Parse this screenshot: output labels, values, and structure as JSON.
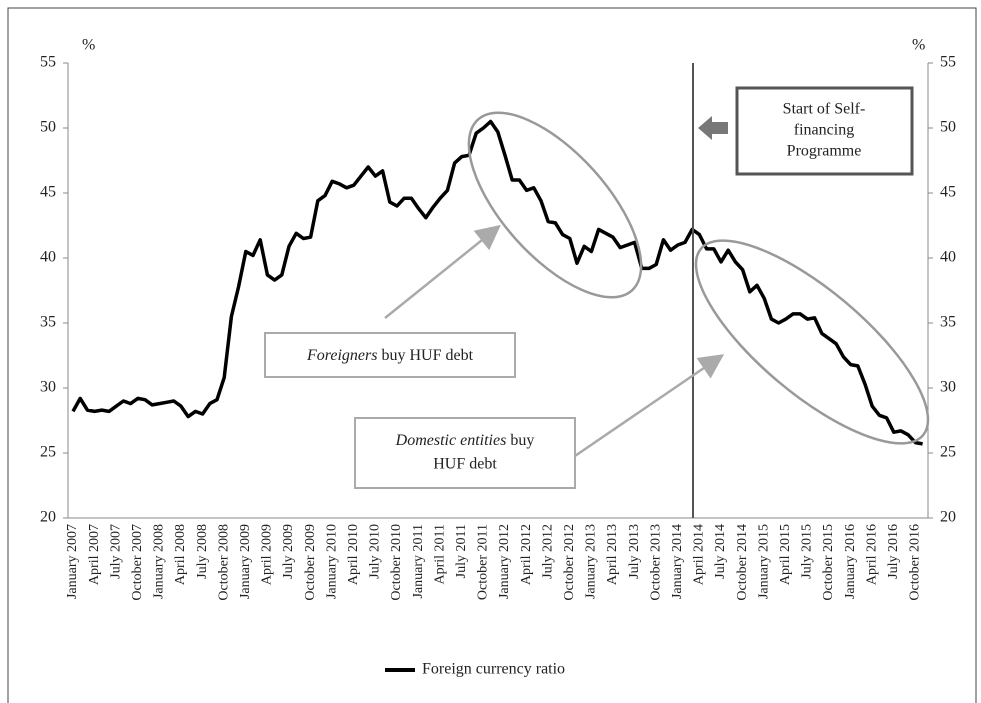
{
  "chart_data": {
    "type": "line",
    "categories": [
      "January 2007",
      null,
      null,
      "April 2007",
      null,
      null,
      "July 2007",
      null,
      null,
      "October 2007",
      null,
      null,
      "January 2008",
      null,
      null,
      "April 2008",
      null,
      null,
      "July 2008",
      null,
      null,
      "October 2008",
      null,
      null,
      "January 2009",
      null,
      null,
      "April 2009",
      null,
      null,
      "July 2009",
      null,
      null,
      "October 2009",
      null,
      null,
      "January 2010",
      null,
      null,
      "April 2010",
      null,
      null,
      "July 2010",
      null,
      null,
      "October 2010",
      null,
      null,
      "January 2011",
      null,
      null,
      "April 2011",
      null,
      null,
      "July 2011",
      null,
      null,
      "October 2011",
      null,
      null,
      "January 2012",
      null,
      null,
      "April 2012",
      null,
      null,
      "July 2012",
      null,
      null,
      "October 2012",
      null,
      null,
      "January 2013",
      null,
      null,
      "April 2013",
      null,
      null,
      "July 2013",
      null,
      null,
      "October 2013",
      null,
      null,
      "January 2014",
      null,
      null,
      "April 2014",
      null,
      null,
      "July 2014",
      null,
      null,
      "October 2014",
      null,
      null,
      "January 2015",
      null,
      null,
      "April 2015",
      null,
      null,
      "July 2015",
      null,
      null,
      "October 2015",
      null,
      null,
      "January 2016",
      null,
      null,
      "April 2016",
      null,
      null,
      "July 2016",
      null,
      null,
      "October 2016",
      null
    ],
    "series": [
      {
        "name": "Foreign currency ratio",
        "color": "#000000",
        "values": [
          28.2,
          29.2,
          28.3,
          28.2,
          28.3,
          28.2,
          28.6,
          29.0,
          28.8,
          29.2,
          29.1,
          28.7,
          28.8,
          28.9,
          29.0,
          28.6,
          27.8,
          28.2,
          28.0,
          28.8,
          29.1,
          30.8,
          35.5,
          37.8,
          40.5,
          40.2,
          41.4,
          38.7,
          38.3,
          38.7,
          40.9,
          41.9,
          41.5,
          41.6,
          44.4,
          44.8,
          45.9,
          45.7,
          45.4,
          45.6,
          46.3,
          47.0,
          46.3,
          46.7,
          44.3,
          44.0,
          44.6,
          44.6,
          43.8,
          43.1,
          43.9,
          44.6,
          45.2,
          47.3,
          47.8,
          47.9,
          49.6,
          50.0,
          50.5,
          49.7,
          47.9,
          46.0,
          46.0,
          45.2,
          45.4,
          44.4,
          42.8,
          42.7,
          41.8,
          41.5,
          39.6,
          40.9,
          40.5,
          42.2,
          41.9,
          41.6,
          40.8,
          41.0,
          41.2,
          39.2,
          39.2,
          39.5,
          41.4,
          40.6,
          41.0,
          41.2,
          42.2,
          41.8,
          40.7,
          40.7,
          39.7,
          40.6,
          39.7,
          39.1,
          37.4,
          37.9,
          36.9,
          35.3,
          35.0,
          35.3,
          35.7,
          35.7,
          35.3,
          35.4,
          34.2,
          33.8,
          33.4,
          32.4,
          31.8,
          31.7,
          30.3,
          28.6,
          27.9,
          27.7,
          26.6,
          26.7,
          26.4,
          25.8,
          25.7
        ]
      }
    ],
    "ylim": [
      20,
      55
    ],
    "yticks": [
      20,
      25,
      30,
      35,
      40,
      45,
      50,
      55
    ],
    "y2lim": [
      20,
      55
    ],
    "y2ticks": [
      20,
      25,
      30,
      35,
      40,
      45,
      50,
      55
    ],
    "y_unit": "%",
    "y2_unit": "%",
    "annotations": [
      {
        "lines": [
          "Start of Self-",
          "financing",
          "Programme"
        ]
      },
      {
        "italic": "Foreigners",
        "text": "buy HUF debt"
      },
      {
        "italic": "Domestic entities",
        "text": "buy",
        "line2": "HUF debt"
      }
    ]
  }
}
